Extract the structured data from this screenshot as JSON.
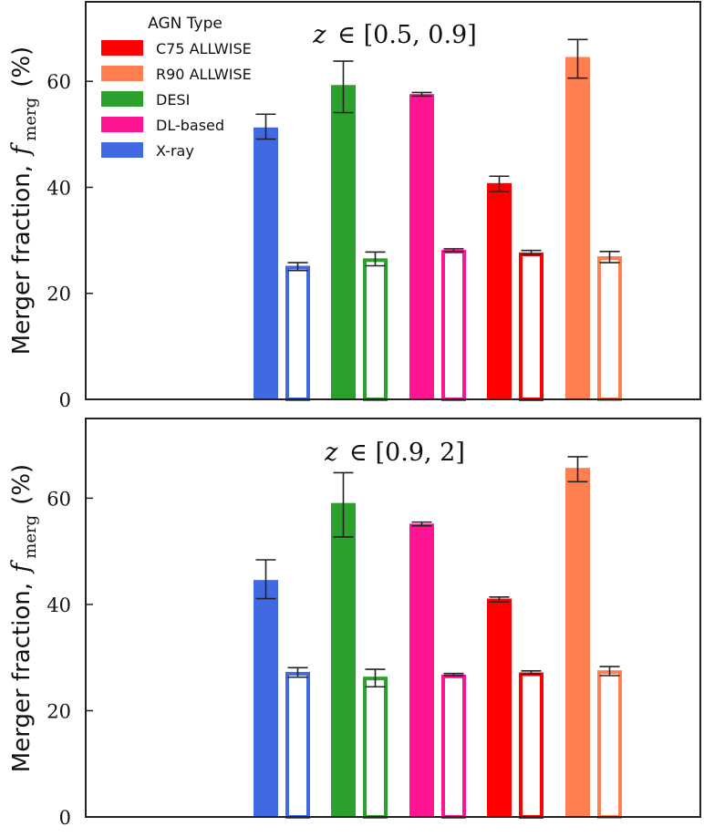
{
  "chart_data": [
    {
      "type": "bar",
      "title": "z ∈ [0.5, 0.9]",
      "title_var": "z",
      "title_range": "∈ [0.5, 0.9]",
      "ylabel": "Merger fraction,",
      "ylabel_math": "f",
      "ylabel_sub": "merg",
      "ylabel_unit": "(%)",
      "ylim": [
        0,
        75
      ],
      "yticks": [
        0,
        20,
        40,
        60
      ],
      "ytick_labels": [
        "0",
        "20",
        "40",
        "60"
      ],
      "grid": false,
      "legend": {
        "title": "AGN Type",
        "placement": "top-left",
        "entries": [
          "C75 ALLWISE",
          "R90 ALLWISE",
          "DESI",
          "DL-based",
          "X-ray"
        ]
      },
      "series": [
        {
          "name": "X-ray",
          "color": "#4169e1",
          "agn": 51.3,
          "agn_err": [
            2.2,
            2.5
          ],
          "control": 25.2,
          "control_err": [
            0.9,
            0.6
          ]
        },
        {
          "name": "DESI",
          "color": "#2ca02c",
          "agn": 59.3,
          "agn_err": [
            5.2,
            4.5
          ],
          "control": 26.6,
          "control_err": [
            1.4,
            1.2
          ]
        },
        {
          "name": "DL-based",
          "color": "#ff1493",
          "agn": 57.6,
          "agn_err": [
            0.4,
            0.3
          ],
          "control": 28.2,
          "control_err": [
            0.3,
            0.2
          ]
        },
        {
          "name": "C75 ALLWISE",
          "color": "#ff0000",
          "agn": 40.8,
          "agn_err": [
            1.6,
            1.3
          ],
          "control": 27.7,
          "control_err": [
            0.4,
            0.4
          ]
        },
        {
          "name": "R90 ALLWISE",
          "color": "#ff7f50",
          "agn": 64.6,
          "agn_err": [
            4.0,
            3.3
          ],
          "control": 27.0,
          "control_err": [
            1.2,
            0.9
          ]
        }
      ]
    },
    {
      "type": "bar",
      "title": "z ∈ [0.9, 2]",
      "title_var": "z",
      "title_range": "∈ [0.9, 2]",
      "ylabel": "Merger fraction,",
      "ylabel_math": "f",
      "ylabel_sub": "merg",
      "ylabel_unit": "(%)",
      "ylim": [
        0,
        75
      ],
      "yticks": [
        0,
        20,
        40,
        60
      ],
      "ytick_labels": [
        "0",
        "20",
        "40",
        "60"
      ],
      "grid": false,
      "series": [
        {
          "name": "X-ray",
          "color": "#4169e1",
          "agn": 44.6,
          "agn_err": [
            3.5,
            3.8
          ],
          "control": 27.3,
          "control_err": [
            1.0,
            0.8
          ]
        },
        {
          "name": "DESI",
          "color": "#2ca02c",
          "agn": 59.1,
          "agn_err": [
            6.4,
            5.7
          ],
          "control": 26.4,
          "control_err": [
            1.9,
            1.4
          ]
        },
        {
          "name": "DL-based",
          "color": "#ff1493",
          "agn": 55.2,
          "agn_err": [
            0.4,
            0.3
          ],
          "control": 26.8,
          "control_err": [
            0.2,
            0.2
          ]
        },
        {
          "name": "C75 ALLWISE",
          "color": "#ff0000",
          "agn": 41.1,
          "agn_err": [
            0.6,
            0.3
          ],
          "control": 27.2,
          "control_err": [
            0.3,
            0.3
          ]
        },
        {
          "name": "R90 ALLWISE",
          "color": "#ff7f50",
          "agn": 65.7,
          "agn_err": [
            2.6,
            2.1
          ],
          "control": 27.6,
          "control_err": [
            1.0,
            0.7
          ]
        }
      ]
    }
  ]
}
